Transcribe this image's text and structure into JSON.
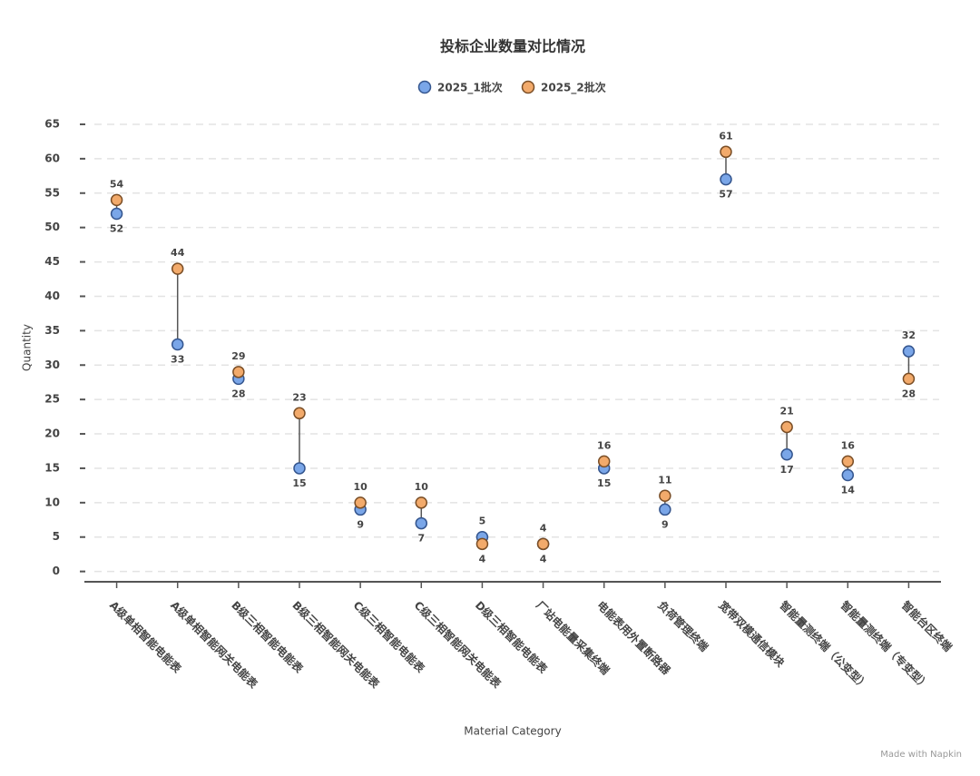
{
  "chart_data": {
    "type": "dumbbell",
    "title": "投标企业数量对比情况",
    "x_label": "Material Category",
    "y_label": "Quantity",
    "watermark": "Made with Napkin",
    "categories": [
      "A级单相智能电能表",
      "A级单相智能网关电能表",
      "B级三相智能电能表",
      "B级三相智能网关电能表",
      "C级三相智能电能表",
      "C级三相智能网关电能表",
      "D级三相智能电能表",
      "厂站电能量采集终端",
      "电能表用外置断路器",
      "负荷管理终端",
      "宽带双模通信模块",
      "智能量测终端（公变型）",
      "智能量测终端（专变型）",
      "智能台区终端"
    ],
    "series": [
      {
        "name": "2025_1批次",
        "color": "#7aa6e8",
        "values": [
          52,
          33,
          28,
          15,
          9,
          7,
          5,
          4,
          15,
          9,
          57,
          17,
          14,
          32
        ]
      },
      {
        "name": "2025_2批次",
        "color": "#f2aa6b",
        "values": [
          54,
          44,
          29,
          23,
          10,
          10,
          4,
          4,
          16,
          11,
          61,
          21,
          16,
          28
        ]
      }
    ],
    "ylim": [
      -1.5,
      66
    ],
    "yticks": [
      0,
      5,
      10,
      15,
      20,
      25,
      30,
      35,
      40,
      45,
      50,
      55,
      60,
      65
    ],
    "grid": true,
    "legend": "top"
  }
}
